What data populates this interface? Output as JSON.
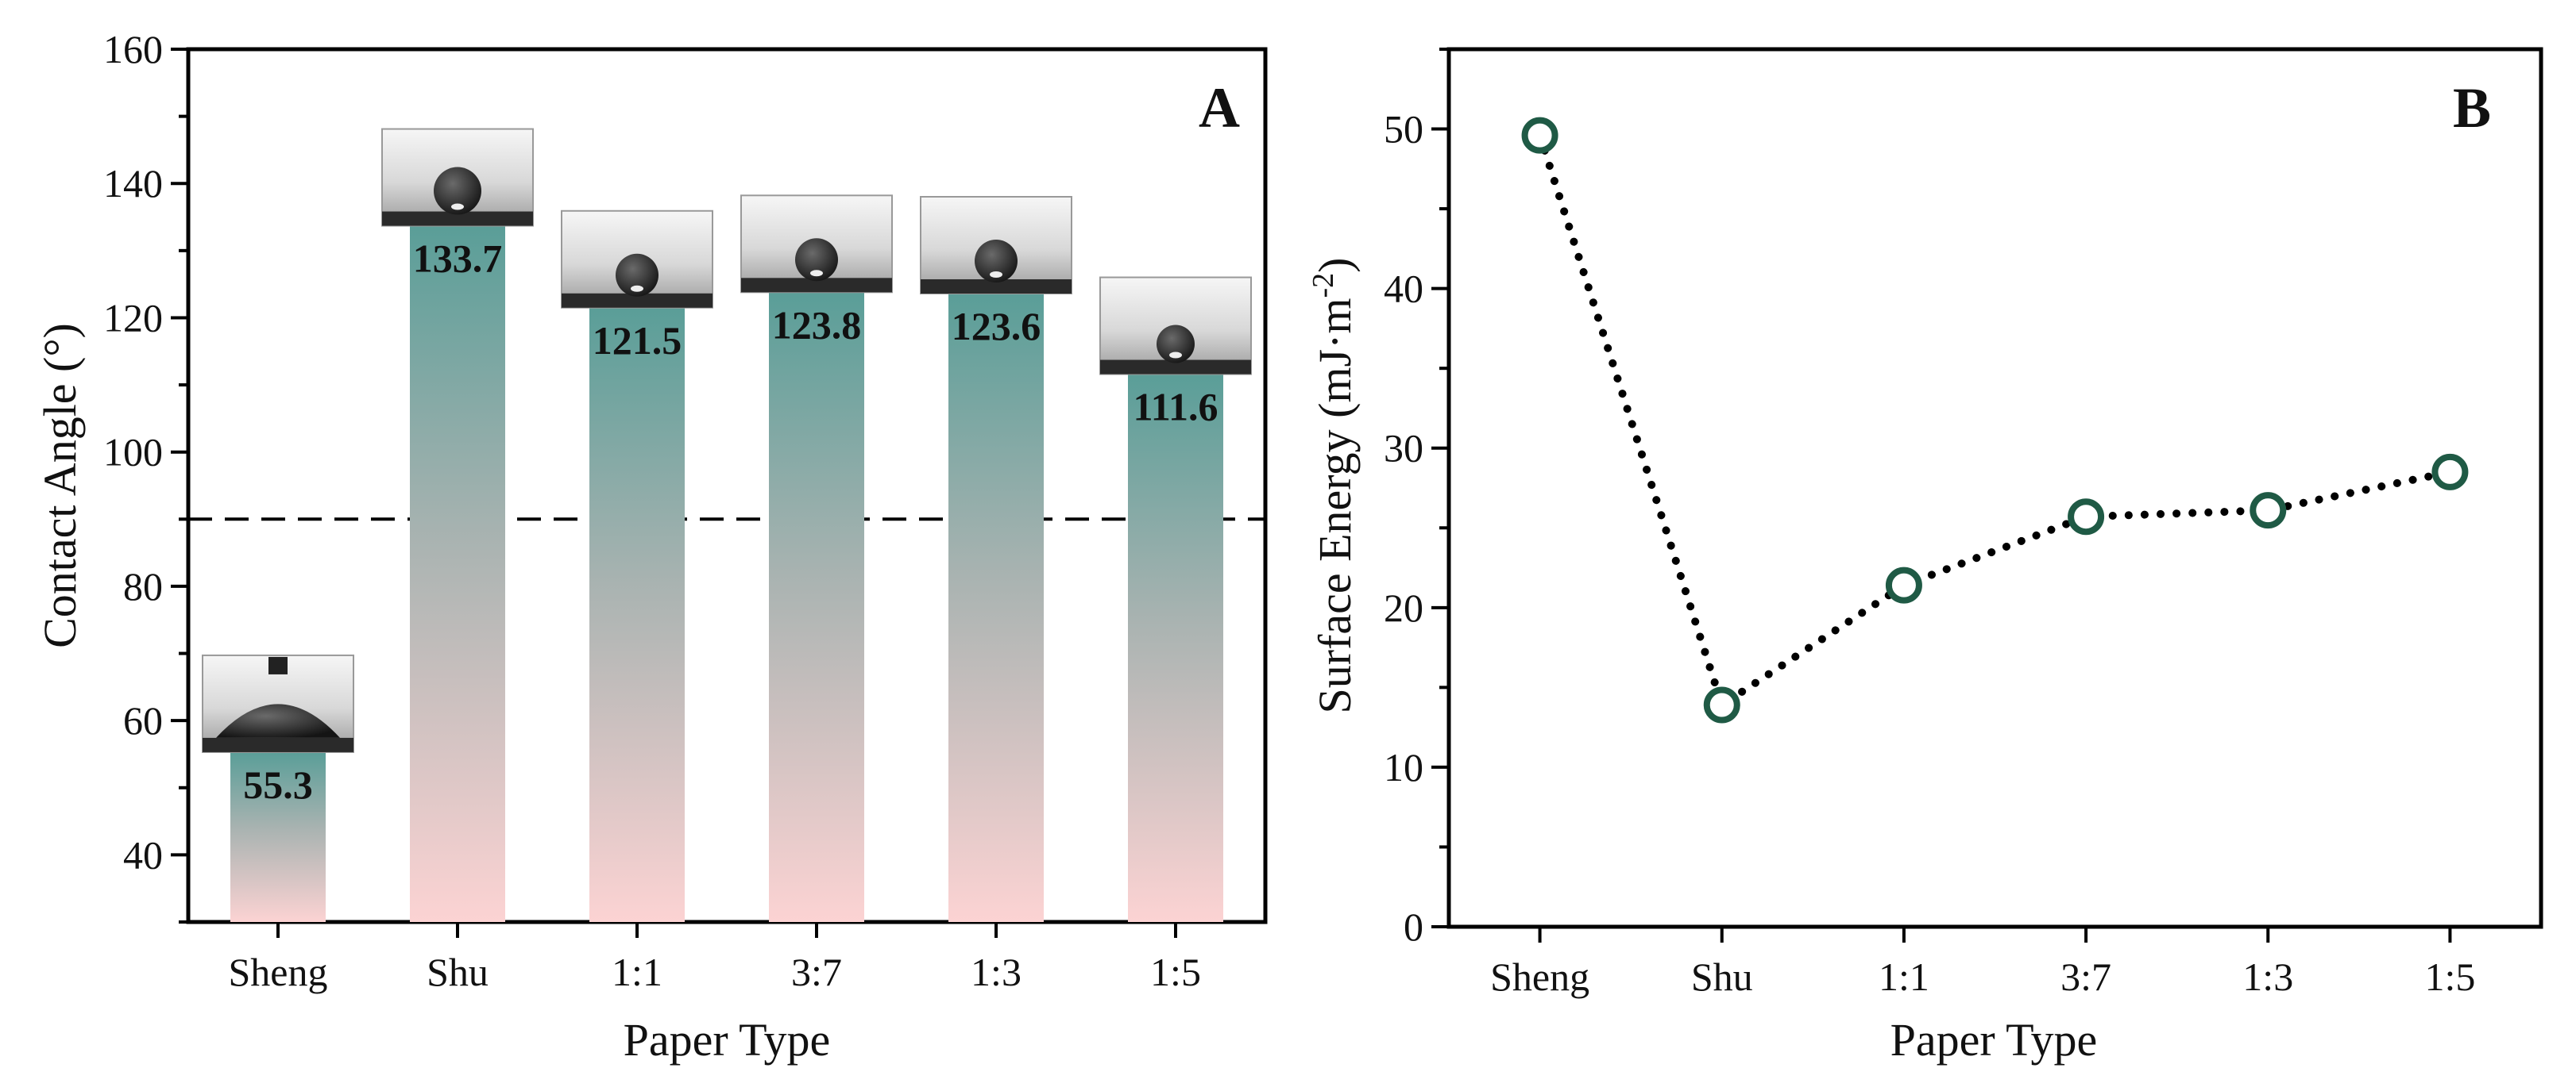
{
  "chart_data": [
    {
      "panel": "A",
      "type": "bar",
      "xlabel": "Paper Type",
      "ylabel": "Contact Angle (°)",
      "categories": [
        "Sheng",
        "Shu",
        "1:1",
        "3:7",
        "1:3",
        "1:5"
      ],
      "values": [
        55.3,
        133.7,
        121.5,
        123.8,
        123.6,
        111.6
      ],
      "value_labels": [
        "55.3",
        "133.7",
        "121.5",
        "123.8",
        "123.6",
        "111.6"
      ],
      "ylim": [
        30,
        160
      ],
      "yticks": [
        40,
        60,
        80,
        100,
        120,
        140,
        160
      ],
      "reference_line": {
        "y": 90,
        "style": "dashed"
      },
      "droplet_images": true,
      "bar_gradient": {
        "top": "#5a9e98",
        "bottom": "#fcd3d3"
      }
    },
    {
      "panel": "B",
      "type": "line",
      "xlabel": "Paper Type",
      "ylabel": "Surface Energy (mJ·m-2)",
      "ylabel_main": "Surface Energy (mJ·m",
      "ylabel_sup": "-2",
      "ylabel_end": ")",
      "categories": [
        "Sheng",
        "Shu",
        "1:1",
        "3:7",
        "1:3",
        "1:5"
      ],
      "values": [
        49.6,
        13.9,
        21.4,
        25.7,
        26.1,
        28.5
      ],
      "ylim": [
        0,
        55
      ],
      "yticks": [
        0,
        10,
        20,
        30,
        40,
        50
      ],
      "line_style": "dotted",
      "marker": "open-circle",
      "marker_color": "#1f5a45"
    }
  ]
}
